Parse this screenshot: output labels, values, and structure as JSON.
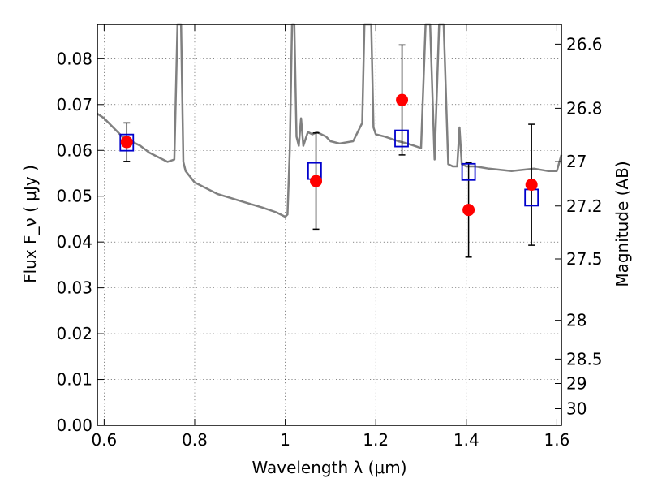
{
  "chart_data": {
    "type": "scatter",
    "title": "",
    "xlabel": "Wavelength  λ (μm)",
    "ylabel": "Flux  F_ν ( μJy )",
    "y2label": "Magnitude (AB)",
    "xlim": [
      0.585,
      1.61
    ],
    "ylim": [
      0.0,
      0.0875
    ],
    "grid": true,
    "x_ticks": [
      0.6,
      0.8,
      1.0,
      1.2,
      1.4,
      1.6
    ],
    "x_tick_labels": [
      "0.6",
      "0.8",
      "1",
      "1.2",
      "1.4",
      "1.6"
    ],
    "y_ticks": [
      0.0,
      0.01,
      0.02,
      0.03,
      0.04,
      0.05,
      0.06,
      0.07,
      0.08
    ],
    "y_tick_labels": [
      "0.00",
      "0.01",
      "0.02",
      "0.03",
      "0.04",
      "0.05",
      "0.06",
      "0.07",
      "0.08"
    ],
    "y2_ticks": [
      26.6,
      26.8,
      27.0,
      27.2,
      27.5,
      28.0,
      28.5,
      29.0,
      30.0
    ],
    "y2_tick_labels": [
      "26.6",
      "26.8",
      "27",
      "27.2",
      "27.5",
      "28",
      "28.5",
      "29",
      "30"
    ],
    "y2_zero_point_ujy": 3631000000,
    "series": [
      {
        "kind": "model",
        "color": "#808080",
        "x": [
          0.585,
          0.6,
          0.62,
          0.64,
          0.66,
          0.68,
          0.7,
          0.72,
          0.74,
          0.755,
          0.762,
          0.765,
          0.77,
          0.775,
          0.78,
          0.8,
          0.85,
          0.9,
          0.95,
          0.98,
          1.0,
          1.005,
          1.01,
          1.015,
          1.02,
          1.025,
          1.03,
          1.035,
          1.04,
          1.05,
          1.06,
          1.07,
          1.08,
          1.09,
          1.1,
          1.12,
          1.15,
          1.17,
          1.175,
          1.18,
          1.185,
          1.19,
          1.195,
          1.2,
          1.22,
          1.25,
          1.27,
          1.3,
          1.31,
          1.315,
          1.32,
          1.33,
          1.34,
          1.345,
          1.35,
          1.36,
          1.37,
          1.38,
          1.385,
          1.39,
          1.4,
          1.42,
          1.45,
          1.5,
          1.55,
          1.58,
          1.6,
          1.61
        ],
        "y": [
          0.068,
          0.067,
          0.065,
          0.063,
          0.062,
          0.061,
          0.0595,
          0.0585,
          0.0575,
          0.058,
          0.0875,
          0.0875,
          0.0875,
          0.0575,
          0.0555,
          0.053,
          0.0505,
          0.049,
          0.0475,
          0.0465,
          0.0455,
          0.046,
          0.06,
          0.0875,
          0.0875,
          0.063,
          0.061,
          0.067,
          0.061,
          0.064,
          0.0635,
          0.064,
          0.0635,
          0.063,
          0.062,
          0.0615,
          0.062,
          0.066,
          0.0875,
          0.0875,
          0.0875,
          0.0875,
          0.065,
          0.0635,
          0.063,
          0.062,
          0.0615,
          0.0605,
          0.0875,
          0.0875,
          0.0875,
          0.058,
          0.0875,
          0.0875,
          0.0875,
          0.057,
          0.0565,
          0.0565,
          0.065,
          0.057,
          0.0565,
          0.0565,
          0.056,
          0.0555,
          0.056,
          0.0555,
          0.0555,
          0.059
        ]
      },
      {
        "kind": "model-photometry",
        "color": "#0000cc",
        "x": [
          0.65,
          1.065,
          1.257,
          1.405,
          1.544
        ],
        "y": [
          0.0617,
          0.0555,
          0.0626,
          0.0553,
          0.0497
        ]
      },
      {
        "kind": "observed",
        "color": "#ff0000",
        "x": [
          0.65,
          1.068,
          1.258,
          1.405,
          1.544
        ],
        "y": [
          0.0618,
          0.0533,
          0.071,
          0.047,
          0.0525
        ],
        "yerr": [
          0.0042,
          0.0105,
          0.012,
          0.0103,
          0.0132
        ]
      }
    ]
  }
}
